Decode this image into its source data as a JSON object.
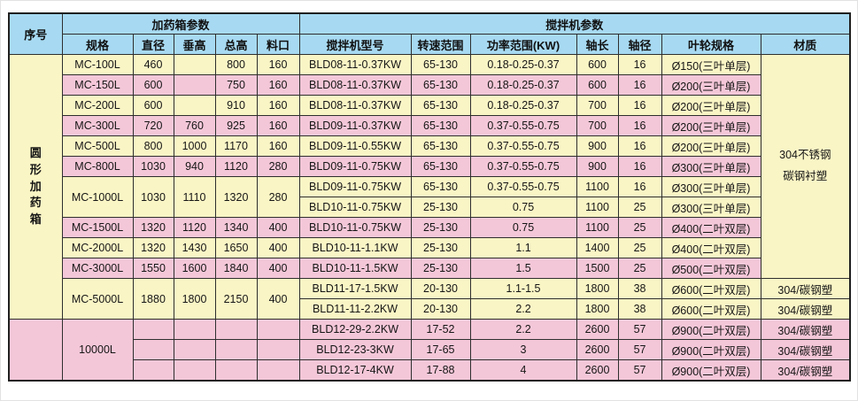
{
  "colors": {
    "header_blue": "#a7daf2",
    "row_yellow": "#faf5c5",
    "row_pink": "#f4c7d8",
    "grid_line": "#2e2e2e",
    "outer_border": "#1f1f1f"
  },
  "table": {
    "header_row1": [
      {
        "t": "序号",
        "rs": 2,
        "name": "header-serial"
      },
      {
        "t": "加药箱参数",
        "cs": 5,
        "name": "header-dosing-box-params"
      },
      {
        "t": "搅拌机参数",
        "cs": 7,
        "name": "header-mixer-params"
      }
    ],
    "header_row2": [
      {
        "t": "规格",
        "name": "header-spec"
      },
      {
        "t": "直径",
        "name": "header-diameter"
      },
      {
        "t": "垂高",
        "name": "header-vertical-height"
      },
      {
        "t": "总高",
        "name": "header-total-height"
      },
      {
        "t": "料口",
        "name": "header-feed-port"
      },
      {
        "t": "搅拌机型号",
        "name": "header-mixer-model"
      },
      {
        "t": "转速范围",
        "name": "header-speed-range"
      },
      {
        "t": "功率范围(KW)",
        "name": "header-power-range"
      },
      {
        "t": "轴长",
        "name": "header-shaft-length"
      },
      {
        "t": "轴径",
        "name": "header-shaft-diameter"
      },
      {
        "t": "叶轮规格",
        "name": "header-impeller-spec"
      },
      {
        "t": "材质",
        "name": "header-material"
      }
    ],
    "rows": [
      {
        "cls": "y",
        "cells": [
          {
            "t": "圆形加药箱",
            "rs": 13,
            "cls": "blue v",
            "vert": true,
            "name": "row-group-label"
          },
          {
            "t": "MC-100L"
          },
          {
            "t": "460"
          },
          {
            "t": ""
          },
          {
            "t": "800"
          },
          {
            "t": "160"
          },
          {
            "t": "BLD08-11-0.37KW"
          },
          {
            "t": "65-130"
          },
          {
            "t": "0.18-0.25-0.37"
          },
          {
            "t": "600"
          },
          {
            "t": "16"
          },
          {
            "t": "Ø150(三叶单层)"
          },
          {
            "t": "304不锈钢\n碳钢衬塑",
            "rs": 11,
            "cls": "mat",
            "name": "material-merged-cell"
          }
        ]
      },
      {
        "cls": "p",
        "cells": [
          {
            "t": "MC-150L"
          },
          {
            "t": "600"
          },
          {
            "t": ""
          },
          {
            "t": "750"
          },
          {
            "t": "160"
          },
          {
            "t": "BLD08-11-0.37KW"
          },
          {
            "t": "65-130"
          },
          {
            "t": "0.18-0.25-0.37"
          },
          {
            "t": "600"
          },
          {
            "t": "16"
          },
          {
            "t": "Ø200(三叶单层)"
          }
        ]
      },
      {
        "cls": "y",
        "cells": [
          {
            "t": "MC-200L"
          },
          {
            "t": "600"
          },
          {
            "t": ""
          },
          {
            "t": "910"
          },
          {
            "t": "160"
          },
          {
            "t": "BLD08-11-0.37KW"
          },
          {
            "t": "65-130"
          },
          {
            "t": "0.18-0.25-0.37"
          },
          {
            "t": "700"
          },
          {
            "t": "16"
          },
          {
            "t": "Ø200(三叶单层)"
          }
        ]
      },
      {
        "cls": "p",
        "cells": [
          {
            "t": "MC-300L"
          },
          {
            "t": "720"
          },
          {
            "t": "760"
          },
          {
            "t": "925"
          },
          {
            "t": "160"
          },
          {
            "t": "BLD09-11-0.37KW"
          },
          {
            "t": "65-130"
          },
          {
            "t": "0.37-0.55-0.75"
          },
          {
            "t": "700"
          },
          {
            "t": "16"
          },
          {
            "t": "Ø200(三叶单层)"
          }
        ]
      },
      {
        "cls": "y",
        "cells": [
          {
            "t": "MC-500L"
          },
          {
            "t": "800"
          },
          {
            "t": "1000"
          },
          {
            "t": "1170"
          },
          {
            "t": "160"
          },
          {
            "t": "BLD09-11-0.55KW"
          },
          {
            "t": "65-130"
          },
          {
            "t": "0.37-0.55-0.75"
          },
          {
            "t": "900"
          },
          {
            "t": "16"
          },
          {
            "t": "Ø200(三叶单层)"
          }
        ]
      },
      {
        "cls": "p",
        "cells": [
          {
            "t": "MC-800L"
          },
          {
            "t": "1030"
          },
          {
            "t": "940"
          },
          {
            "t": "1120"
          },
          {
            "t": "280"
          },
          {
            "t": "BLD09-11-0.75KW"
          },
          {
            "t": "65-130"
          },
          {
            "t": "0.37-0.55-0.75"
          },
          {
            "t": "900"
          },
          {
            "t": "16"
          },
          {
            "t": "Ø300(三叶单层)"
          }
        ]
      },
      {
        "cls": "y",
        "cells": [
          {
            "t": "MC-1000L",
            "rs": 2
          },
          {
            "t": "1030",
            "rs": 2
          },
          {
            "t": "1110",
            "rs": 2
          },
          {
            "t": "1320",
            "rs": 2
          },
          {
            "t": "280",
            "rs": 2
          },
          {
            "t": "BLD09-11-0.75KW"
          },
          {
            "t": "65-130"
          },
          {
            "t": "0.37-0.55-0.75"
          },
          {
            "t": "1100"
          },
          {
            "t": "16"
          },
          {
            "t": "Ø300(三叶单层)"
          }
        ]
      },
      {
        "cls": "y",
        "cells": [
          {
            "t": "BLD10-11-0.75KW"
          },
          {
            "t": "25-130"
          },
          {
            "t": "0.75"
          },
          {
            "t": "1100"
          },
          {
            "t": "25"
          },
          {
            "t": "Ø300(三叶单层)"
          }
        ]
      },
      {
        "cls": "p",
        "cells": [
          {
            "t": "MC-1500L"
          },
          {
            "t": "1320"
          },
          {
            "t": "1120"
          },
          {
            "t": "1340"
          },
          {
            "t": "400"
          },
          {
            "t": "BLD10-11-0.75KW"
          },
          {
            "t": "25-130"
          },
          {
            "t": "0.75"
          },
          {
            "t": "1100"
          },
          {
            "t": "25"
          },
          {
            "t": "Ø400(二叶双层)"
          }
        ]
      },
      {
        "cls": "y",
        "cells": [
          {
            "t": "MC-2000L"
          },
          {
            "t": "1320"
          },
          {
            "t": "1430"
          },
          {
            "t": "1650"
          },
          {
            "t": "400"
          },
          {
            "t": "BLD10-11-1.1KW"
          },
          {
            "t": "25-130"
          },
          {
            "t": "1.1"
          },
          {
            "t": "1400"
          },
          {
            "t": "25"
          },
          {
            "t": "Ø400(二叶双层)"
          }
        ]
      },
      {
        "cls": "p",
        "cells": [
          {
            "t": "MC-3000L"
          },
          {
            "t": "1550"
          },
          {
            "t": "1600"
          },
          {
            "t": "1840"
          },
          {
            "t": "400"
          },
          {
            "t": "BLD10-11-1.5KW"
          },
          {
            "t": "25-130"
          },
          {
            "t": "1.5"
          },
          {
            "t": "1500"
          },
          {
            "t": "25"
          },
          {
            "t": "Ø500(二叶双层)"
          }
        ]
      },
      {
        "cls": "y",
        "cells": [
          {
            "t": "MC-5000L",
            "rs": 2
          },
          {
            "t": "1880",
            "rs": 2
          },
          {
            "t": "1800",
            "rs": 2
          },
          {
            "t": "2150",
            "rs": 2
          },
          {
            "t": "400",
            "rs": 2
          },
          {
            "t": "BLD11-17-1.5KW"
          },
          {
            "t": "20-130"
          },
          {
            "t": "1.1-1.5"
          },
          {
            "t": "1800"
          },
          {
            "t": "38"
          },
          {
            "t": "Ø600(二叶双层)"
          },
          {
            "t": "304/碳钢塑",
            "name": "material-cell"
          }
        ]
      },
      {
        "cls": "y",
        "cells": [
          {
            "t": "BLD11-11-2.2KW"
          },
          {
            "t": "20-130"
          },
          {
            "t": "2.2"
          },
          {
            "t": "1800"
          },
          {
            "t": "38"
          },
          {
            "t": "Ø600(二叶双层)"
          },
          {
            "t": "304/碳钢塑",
            "name": "material-cell"
          }
        ]
      },
      {
        "cls": "p",
        "cells": [
          {
            "t": "",
            "rs": 3,
            "cls": "blue",
            "name": "row-group-empty"
          },
          {
            "t": "10000L",
            "rs": 3
          },
          {
            "t": ""
          },
          {
            "t": ""
          },
          {
            "t": ""
          },
          {
            "t": ""
          },
          {
            "t": "BLD12-29-2.2KW"
          },
          {
            "t": "17-52"
          },
          {
            "t": "2.2"
          },
          {
            "t": "2600"
          },
          {
            "t": "57"
          },
          {
            "t": "Ø900(二叶双层)"
          },
          {
            "t": "304/碳钢塑",
            "name": "material-cell"
          }
        ]
      },
      {
        "cls": "p",
        "cells": [
          {
            "t": ""
          },
          {
            "t": ""
          },
          {
            "t": ""
          },
          {
            "t": ""
          },
          {
            "t": "BLD12-23-3KW"
          },
          {
            "t": "17-65"
          },
          {
            "t": "3"
          },
          {
            "t": "2600"
          },
          {
            "t": "57"
          },
          {
            "t": "Ø900(二叶双层)"
          },
          {
            "t": "304/碳钢塑",
            "name": "material-cell"
          }
        ]
      },
      {
        "cls": "p",
        "cells": [
          {
            "t": ""
          },
          {
            "t": ""
          },
          {
            "t": ""
          },
          {
            "t": ""
          },
          {
            "t": "BLD12-17-4KW"
          },
          {
            "t": "17-88"
          },
          {
            "t": "4"
          },
          {
            "t": "2600"
          },
          {
            "t": "57"
          },
          {
            "t": "Ø900(二叶双层)"
          },
          {
            "t": "304/碳钢塑",
            "name": "material-cell"
          }
        ]
      }
    ]
  }
}
